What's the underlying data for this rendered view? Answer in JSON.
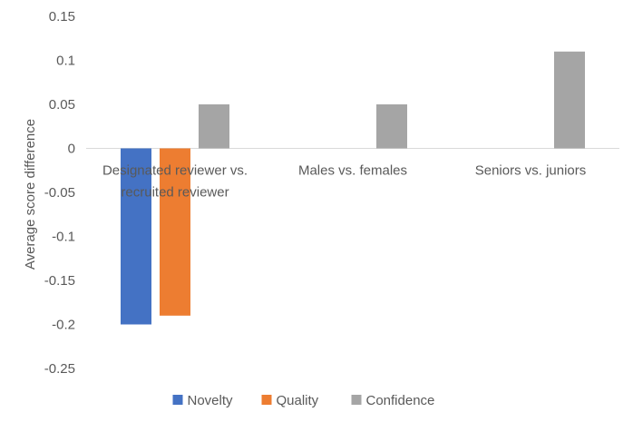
{
  "chart_data": {
    "type": "bar",
    "categories": [
      [
        "Designated reviewer vs.",
        "recruited reviewer"
      ],
      [
        "Males vs. females"
      ],
      [
        "Seniors vs. juniors"
      ]
    ],
    "series": [
      {
        "name": "Novelty",
        "color": "#4472C4",
        "values": [
          -0.2,
          null,
          null
        ]
      },
      {
        "name": "Quality",
        "color": "#ED7D31",
        "values": [
          -0.19,
          null,
          null
        ]
      },
      {
        "name": "Confidence",
        "color": "#A5A5A5",
        "values": [
          0.05,
          0.05,
          0.11
        ]
      }
    ],
    "ylabel": "Average score difference",
    "xlabel": "",
    "ylim": [
      -0.25,
      0.15
    ],
    "yticks": [
      "0.15",
      "0.1",
      "0.05",
      "0",
      "-0.05",
      "-0.1",
      "-0.15",
      "-0.2",
      "-0.25"
    ],
    "ytick_values": [
      0.15,
      0.1,
      0.05,
      0,
      -0.05,
      -0.1,
      -0.15,
      -0.2,
      -0.25
    ],
    "grid": false,
    "legend_position": "bottom"
  }
}
